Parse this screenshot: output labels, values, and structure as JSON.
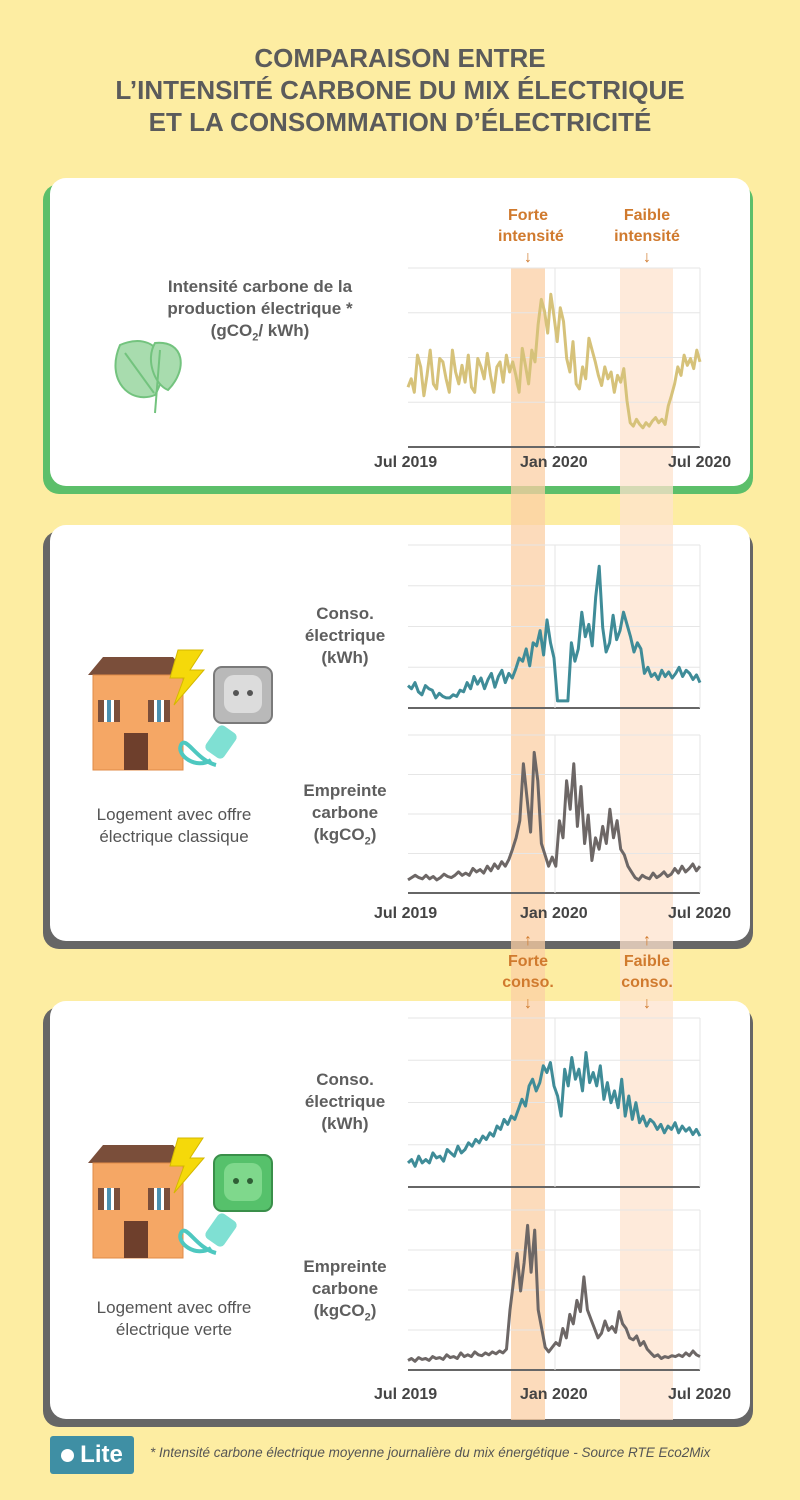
{
  "title": {
    "line1": "COMPARAISON ENTRE",
    "line2": "L’INTENSITÉ CARBONE DU MIX ÉLECTRIQUE",
    "line3": "ET LA CONSOMMATION D’ÉLECTRICITÉ"
  },
  "colors": {
    "background": "#fdeda2",
    "intensity_line": "#d6c27a",
    "conso_line": "#3f8c98",
    "carbon_line": "#6d6766",
    "forte_band": "#fbcfa4",
    "faible_band": "#fde3cd",
    "annotation": "#d07a2e",
    "card1_border": "#5cbf6a",
    "card_border": "#666666"
  },
  "annotations": {
    "forte_intensite": "Forte intensité",
    "faible_intensite": "Faible intensité",
    "forte_conso": "Forte conso.",
    "faible_conso": "Faible conso.",
    "arrow_down": "↓",
    "arrow_up": "↑"
  },
  "card1": {
    "label_line1": "Intensité carbone de la",
    "label_line2": "production électrique *",
    "label_line3_a": "(gCO",
    "label_line3_sub": "2",
    "label_line3_b": "/ kWh)",
    "icon": "leaf-icon"
  },
  "card2": {
    "conso_label_1": "Conso.",
    "conso_label_2": "électrique",
    "conso_label_3": "(kWh)",
    "carbon_label_1": "Empreinte",
    "carbon_label_2": "carbone",
    "carbon_label_3a": "(kgCO",
    "carbon_label_3sub": "2",
    "carbon_label_3b": ")",
    "house_line1": "Logement avec offre",
    "house_line2": "électrique classique",
    "icon": "grey-socket-icon"
  },
  "card3": {
    "conso_label_1": "Conso.",
    "conso_label_2": "électrique",
    "conso_label_3": "(kWh)",
    "carbon_label_1": "Empreinte",
    "carbon_label_2": "carbone",
    "carbon_label_3a": "(kgCO",
    "carbon_label_3sub": "2",
    "carbon_label_3b": ")",
    "house_line1": "Logement avec offre",
    "house_line2": "électrique verte",
    "icon": "green-socket-icon"
  },
  "x_ticks": [
    "Jul 2019",
    "Jan 2020",
    "Jul 2020"
  ],
  "footnote": "* Intensité carbone électrique moyenne journalière du mix énergétique - Source RTE Eco2Mix",
  "logo": "Lite",
  "chart_data": [
    {
      "type": "line",
      "series": [
        {
          "values": [
            33,
            38,
            30,
            52,
            45,
            28,
            40,
            55,
            35,
            32,
            50,
            48,
            38,
            30,
            55,
            42,
            35,
            46,
            36,
            52,
            33,
            30,
            50,
            45,
            38,
            53,
            40,
            30,
            45,
            48,
            36,
            52,
            42,
            48,
            40,
            30,
            56,
            46,
            35,
            55,
            48,
            70,
            85,
            78,
            65,
            88,
            75,
            60,
            80,
            72,
            50,
            42,
            60,
            35,
            32,
            45,
            38,
            62,
            55,
            48,
            40,
            34,
            45,
            38,
            42,
            30,
            40,
            36,
            44,
            25,
            12,
            10,
            14,
            11,
            9,
            12,
            10,
            13,
            15,
            12,
            14,
            11,
            22,
            28,
            35,
            45,
            40,
            52,
            46,
            50,
            44,
            55,
            48
          ]
        }
      ],
      "highlights": [
        "Forte intensité",
        "Faible intensité"
      ]
    },
    {
      "type": "line",
      "series": [
        {
          "values": [
            12,
            10,
            14,
            8,
            6,
            12,
            10,
            9,
            4,
            7,
            5,
            4,
            4,
            6,
            5,
            9,
            8,
            14,
            10,
            18,
            13,
            17,
            10,
            16,
            20,
            11,
            18,
            22,
            14,
            20,
            17,
            23,
            30,
            28,
            36,
            25,
            40,
            38,
            48,
            32,
            55,
            40,
            30,
            2,
            2,
            2,
            2,
            40,
            28,
            36,
            60,
            44,
            52,
            38,
            70,
            90,
            50,
            34,
            40,
            58,
            42,
            48,
            60,
            52,
            44,
            34,
            40,
            36,
            20,
            24,
            18,
            20,
            16,
            22,
            18,
            21,
            17,
            20,
            24,
            18,
            22,
            20,
            16,
            19,
            14
          ]
        }
      ]
    },
    {
      "type": "line",
      "series": [
        {
          "values": [
            8,
            10,
            12,
            10,
            9,
            12,
            9,
            11,
            8,
            10,
            13,
            11,
            10,
            12,
            15,
            12,
            14,
            12,
            18,
            15,
            17,
            14,
            20,
            16,
            22,
            18,
            24,
            20,
            26,
            35,
            45,
            60,
            110,
            80,
            50,
            120,
            95,
            40,
            30,
            20,
            28,
            20,
            60,
            45,
            95,
            70,
            110,
            55,
            90,
            40,
            65,
            25,
            45,
            35,
            55,
            40,
            70,
            45,
            60,
            35,
            30,
            20,
            15,
            10,
            8,
            12,
            10,
            9,
            14,
            10,
            12,
            15,
            11,
            13,
            18,
            14,
            20,
            15,
            18,
            22,
            16,
            20
          ]
        }
      ]
    },
    {
      "type": "line",
      "series": [
        {
          "values": [
            12,
            14,
            10,
            16,
            12,
            14,
            12,
            18,
            15,
            16,
            13,
            20,
            18,
            16,
            22,
            18,
            20,
            24,
            22,
            26,
            24,
            28,
            26,
            30,
            28,
            34,
            32,
            38,
            35,
            40,
            38,
            44,
            50,
            46,
            58,
            62,
            55,
            60,
            70,
            66,
            72,
            58,
            52,
            40,
            68,
            58,
            75,
            62,
            68,
            55,
            78,
            60,
            66,
            58,
            70,
            50,
            60,
            48,
            55,
            45,
            62,
            40,
            52,
            38,
            48,
            36,
            40,
            34,
            38,
            36,
            32,
            35,
            30,
            34,
            32,
            36,
            30,
            34,
            31,
            33,
            29,
            32,
            28
          ]
        }
      ]
    },
    {
      "type": "line",
      "series": [
        {
          "values": [
            6,
            8,
            5,
            9,
            7,
            8,
            6,
            10,
            8,
            9,
            7,
            12,
            9,
            10,
            8,
            14,
            10,
            12,
            10,
            15,
            12,
            11,
            14,
            12,
            15,
            13,
            16,
            14,
            18,
            60,
            90,
            120,
            80,
            110,
            150,
            100,
            145,
            60,
            40,
            20,
            15,
            20,
            25,
            22,
            40,
            30,
            55,
            45,
            70,
            58,
            95,
            60,
            50,
            40,
            30,
            35,
            48,
            38,
            42,
            36,
            58,
            45,
            40,
            30,
            28,
            32,
            22,
            26,
            18,
            14,
            10,
            12,
            8,
            10,
            9,
            11,
            10,
            12,
            10,
            14,
            11,
            16,
            12,
            10
          ]
        }
      ]
    }
  ]
}
